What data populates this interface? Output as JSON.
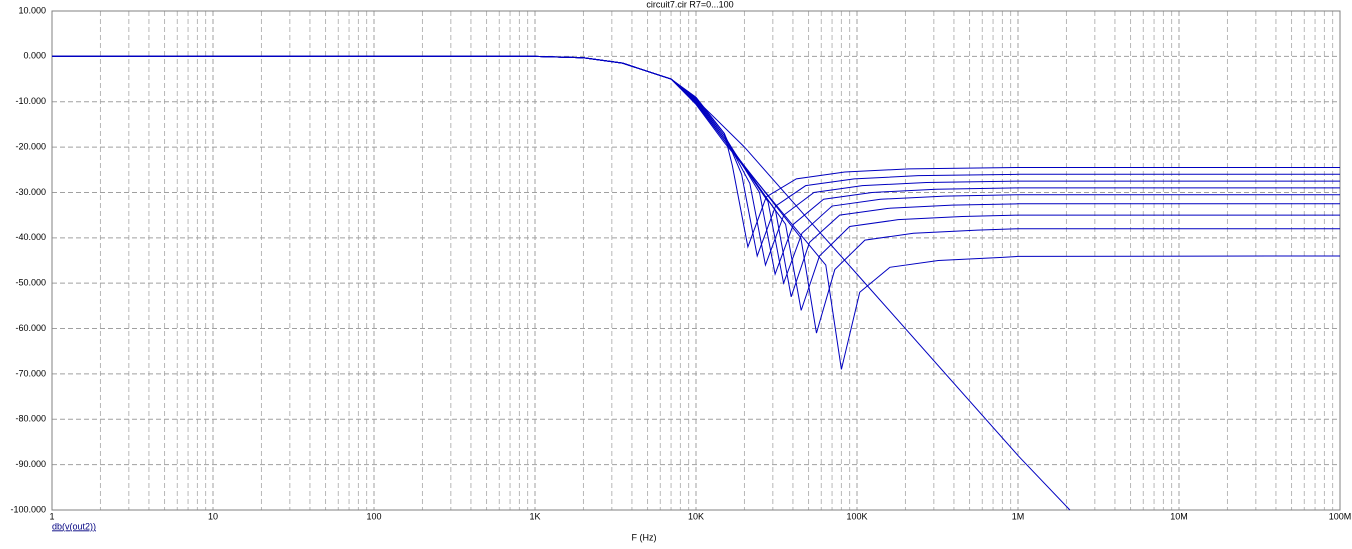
{
  "chart_data": {
    "type": "line",
    "title": "circuit7.cir R7=0...100",
    "x_label": "F (Hz)",
    "y_label": "db(v(out2))",
    "xscale": "log",
    "grid": true,
    "xlim": [
      1,
      100000000
    ],
    "ylim": [
      -100,
      10
    ],
    "xticks": [
      1,
      10,
      100,
      {
        "value": 1000,
        "label": "1K"
      },
      {
        "value": 10000,
        "label": "10K"
      },
      {
        "value": 100000,
        "label": "100K"
      },
      {
        "value": 1000000,
        "label": "1M"
      },
      {
        "value": 10000000,
        "label": "10M"
      },
      {
        "value": 100000000,
        "label": "100M"
      }
    ],
    "yticks": [
      {
        "value": 10,
        "label": "10.000"
      },
      {
        "value": 0,
        "label": "0.000"
      },
      {
        "value": -10,
        "label": "-10.000"
      },
      {
        "value": -20,
        "label": "-20.000"
      },
      {
        "value": -30,
        "label": "-30.000"
      },
      {
        "value": -40,
        "label": "-40.000"
      },
      {
        "value": -50,
        "label": "-50.000"
      },
      {
        "value": -60,
        "label": "-60.000"
      },
      {
        "value": -70,
        "label": "-70.000"
      },
      {
        "value": -80,
        "label": "-80.000"
      },
      {
        "value": -90,
        "label": "-90.000"
      },
      {
        "value": -100,
        "label": "-100.000"
      }
    ],
    "series": [
      {
        "color": "#0000c0",
        "x": [
          1,
          1000,
          2000,
          3500,
          7000,
          10000,
          20000,
          50000,
          100000,
          1000000,
          2100000
        ],
        "values": [
          0,
          0,
          -0.3,
          -1.5,
          -5,
          -9.5,
          -20,
          -36,
          -48,
          -88,
          -100
        ]
      },
      {
        "color": "#0000c0",
        "x": [
          1,
          1000,
          2000,
          3500,
          7000,
          10000,
          15000,
          16800,
          21000,
          27300,
          42000,
          84000,
          210000,
          1000000,
          100000000
        ],
        "values": [
          0,
          0,
          -0.3,
          -1.5,
          -5,
          -9,
          -17,
          -24,
          -42,
          -31,
          -27,
          -25.5,
          -24.8,
          -24.5,
          -24.5
        ]
      },
      {
        "color": "#0000c0",
        "x": [
          1,
          1000,
          2000,
          3500,
          7000,
          10000,
          15000,
          19200,
          24000,
          31200,
          48000,
          96000,
          240000,
          1000000,
          100000000
        ],
        "values": [
          0,
          0,
          -0.3,
          -1.5,
          -5,
          -9.2,
          -17,
          -26,
          -44,
          -33,
          -28.5,
          -27,
          -26.3,
          -26,
          -26
        ]
      },
      {
        "color": "#0000c0",
        "x": [
          1,
          1000,
          2000,
          3500,
          7000,
          10000,
          15000,
          21600,
          27000,
          35100,
          54000,
          108000,
          270000,
          1000000,
          100000000
        ],
        "values": [
          0,
          0,
          -0.3,
          -1.5,
          -5,
          -9.4,
          -17.5,
          -28,
          -46,
          -35,
          -30,
          -28.5,
          -27.8,
          -27.5,
          -27.5
        ]
      },
      {
        "color": "#0000c0",
        "x": [
          1,
          1000,
          2000,
          3500,
          7000,
          10000,
          15000,
          24800,
          31000,
          40300,
          62000,
          124000,
          310000,
          1000000,
          100000000
        ],
        "values": [
          0,
          0,
          -0.3,
          -1.5,
          -5,
          -9.6,
          -17.5,
          -30,
          -48,
          -37,
          -31.5,
          -30,
          -29.3,
          -29,
          -29
        ]
      },
      {
        "color": "#0000c0",
        "x": [
          1,
          1000,
          2000,
          3500,
          7000,
          10000,
          15000,
          28000,
          35000,
          45500,
          70000,
          140000,
          350000,
          1000000,
          100000000
        ],
        "values": [
          0,
          0,
          -0.3,
          -1.5,
          -5,
          -9.8,
          -18,
          -32,
          -50,
          -39,
          -33,
          -31.5,
          -30.8,
          -30.5,
          -30.5
        ]
      },
      {
        "color": "#0000c0",
        "x": [
          1,
          1000,
          2000,
          3500,
          7000,
          10000,
          15000,
          31200,
          39000,
          50700,
          78000,
          156000,
          390000,
          1000000,
          100000000
        ],
        "values": [
          0,
          0,
          -0.3,
          -1.5,
          -5,
          -10,
          -18,
          -34,
          -53,
          -41,
          -35,
          -33.5,
          -32.8,
          -32.5,
          -32.5
        ]
      },
      {
        "color": "#0000c0",
        "x": [
          1,
          1000,
          2000,
          3500,
          7000,
          10000,
          15000,
          36000,
          45000,
          58500,
          90000,
          180000,
          450000,
          1000000,
          100000000
        ],
        "values": [
          0,
          0,
          -0.3,
          -1.5,
          -5,
          -10.2,
          -18.5,
          -37,
          -56,
          -44,
          -37.5,
          -36,
          -35.3,
          -35,
          -35
        ]
      },
      {
        "color": "#0000c0",
        "x": [
          1,
          1000,
          2000,
          3500,
          7000,
          10000,
          15000,
          44800,
          56000,
          72800,
          112000,
          224000,
          560000,
          1000000,
          100000000
        ],
        "values": [
          0,
          0,
          -0.3,
          -1.5,
          -5,
          -10.4,
          -18.5,
          -40,
          -61,
          -47,
          -40.5,
          -39,
          -38.3,
          -38,
          -38
        ]
      },
      {
        "color": "#0000c0",
        "x": [
          1,
          1000,
          2000,
          3500,
          7000,
          10000,
          15000,
          64000,
          80000,
          104000,
          160000,
          320000,
          800000,
          1000000,
          100000000
        ],
        "values": [
          0,
          0,
          -0.3,
          -1.5,
          -5,
          -10.6,
          -19,
          -46,
          -69,
          -52,
          -46.5,
          -45,
          -44.3,
          -44.1,
          -44
        ]
      }
    ]
  }
}
